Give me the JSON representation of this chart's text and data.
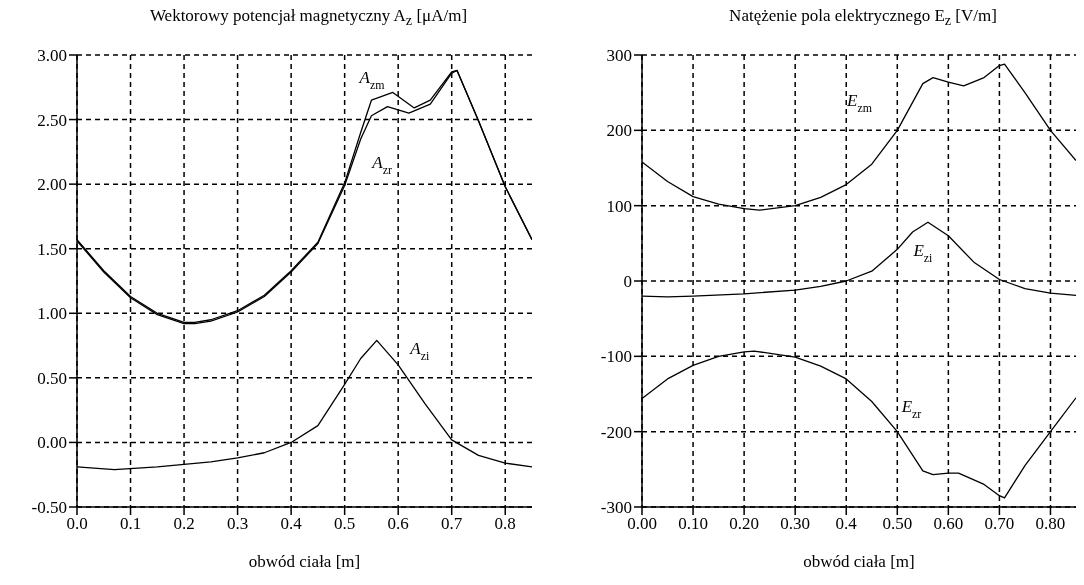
{
  "chart_data": [
    {
      "type": "line",
      "title": "Wektorowy potencjał magnetyczny A$_{z}$ [μA/m]",
      "xlabel": "obwód ciała [m]",
      "grid": true,
      "marker": "none",
      "line_style": "solid",
      "xlim": [
        0,
        0.85
      ],
      "ylim": [
        -0.5,
        3
      ],
      "xticks": [
        {
          "value": 0,
          "label": "0.0"
        },
        0.1,
        0.2,
        0.3,
        0.4,
        0.5,
        0.6,
        0.7,
        0.8
      ],
      "yticks": [
        {
          "value": -0.5,
          "label": "-0.50"
        },
        {
          "value": 0,
          "label": "0.00"
        },
        {
          "value": 0.5,
          "label": "0.50"
        },
        {
          "value": 1,
          "label": "1.00"
        },
        {
          "value": 1.5,
          "label": "1.50"
        },
        {
          "value": 2,
          "label": "2.00"
        },
        {
          "value": 2.5,
          "label": "2.50"
        },
        {
          "value": 3,
          "label": "3.00"
        }
      ],
      "series": [
        {
          "name": "A$_{zm}$",
          "color": "#000000",
          "x": [
            0,
            0.05,
            0.1,
            0.15,
            0.2,
            0.22,
            0.25,
            0.3,
            0.35,
            0.4,
            0.45,
            0.5,
            0.53,
            0.55,
            0.59,
            0.63,
            0.66,
            0.7,
            0.71,
            0.75,
            0.8,
            0.85
          ],
          "values": [
            1.57,
            1.33,
            1.13,
            1.0,
            0.93,
            0.93,
            0.95,
            1.02,
            1.14,
            1.33,
            1.55,
            2.01,
            2.4,
            2.65,
            2.71,
            2.59,
            2.65,
            2.87,
            2.88,
            2.49,
            1.98,
            1.57
          ]
        },
        {
          "name": "A$_{zr}$",
          "color": "#000000",
          "x": [
            0,
            0.05,
            0.1,
            0.15,
            0.2,
            0.22,
            0.25,
            0.3,
            0.35,
            0.4,
            0.45,
            0.5,
            0.53,
            0.55,
            0.58,
            0.62,
            0.66,
            0.7,
            0.71,
            0.75,
            0.8,
            0.85
          ],
          "values": [
            1.56,
            1.32,
            1.12,
            0.99,
            0.92,
            0.92,
            0.94,
            1.01,
            1.13,
            1.32,
            1.54,
            1.99,
            2.35,
            2.53,
            2.6,
            2.55,
            2.62,
            2.86,
            2.88,
            2.49,
            1.98,
            1.57
          ]
        },
        {
          "name": "A$_{zi}$",
          "color": "#000000",
          "x": [
            0,
            0.07,
            0.15,
            0.2,
            0.25,
            0.3,
            0.35,
            0.4,
            0.45,
            0.5,
            0.53,
            0.56,
            0.6,
            0.65,
            0.7,
            0.75,
            0.8,
            0.85
          ],
          "values": [
            -0.19,
            -0.21,
            -0.19,
            -0.17,
            -0.15,
            -0.12,
            -0.08,
            0.0,
            0.13,
            0.45,
            0.65,
            0.79,
            0.6,
            0.3,
            0.02,
            -0.1,
            -0.16,
            -0.19
          ]
        }
      ]
    },
    {
      "type": "line",
      "title": "Natężenie pola elektrycznego E$_{z}$ [V/m]",
      "xlabel": "obwód ciała [m]",
      "grid": true,
      "marker": "none",
      "line_style": "solid",
      "xlim": [
        0,
        0.85
      ],
      "ylim": [
        -300,
        300
      ],
      "xticks": [
        {
          "value": 0,
          "label": "0.00"
        },
        {
          "value": 0.1,
          "label": "0.10"
        },
        {
          "value": 0.2,
          "label": "0.20"
        },
        {
          "value": 0.3,
          "label": "0.30"
        },
        0.4,
        {
          "value": 0.5,
          "label": "0.50"
        },
        {
          "value": 0.6,
          "label": "0.60"
        },
        {
          "value": 0.7,
          "label": "0.70"
        },
        {
          "value": 0.8,
          "label": "0.80"
        }
      ],
      "yticks": [
        -300,
        -200,
        -100,
        0,
        100,
        200,
        300
      ],
      "series": [
        {
          "name": "E$_{zm}$",
          "color": "#000000",
          "x": [
            0,
            0.05,
            0.1,
            0.15,
            0.2,
            0.23,
            0.3,
            0.35,
            0.4,
            0.45,
            0.5,
            0.55,
            0.57,
            0.6,
            0.63,
            0.67,
            0.7,
            0.71,
            0.75,
            0.8,
            0.85
          ],
          "values": [
            158,
            132,
            112,
            102,
            96,
            94,
            100,
            111,
            128,
            155,
            200,
            262,
            270,
            264,
            259,
            270,
            286,
            288,
            250,
            200,
            160
          ]
        },
        {
          "name": "E$_{zi}$",
          "color": "#000000",
          "x": [
            0,
            0.05,
            0.1,
            0.2,
            0.3,
            0.35,
            0.4,
            0.45,
            0.5,
            0.53,
            0.56,
            0.6,
            0.65,
            0.7,
            0.75,
            0.8,
            0.85
          ],
          "values": [
            -20,
            -21,
            -20,
            -17,
            -12,
            -7,
            0,
            13,
            42,
            65,
            78,
            60,
            25,
            2,
            -10,
            -16,
            -19
          ]
        },
        {
          "name": "E$_{zr}$",
          "color": "#000000",
          "x": [
            0,
            0.05,
            0.1,
            0.15,
            0.2,
            0.22,
            0.3,
            0.35,
            0.4,
            0.45,
            0.5,
            0.55,
            0.57,
            0.6,
            0.62,
            0.67,
            0.7,
            0.71,
            0.75,
            0.8,
            0.85
          ],
          "values": [
            -156,
            -130,
            -112,
            -100,
            -94,
            -93,
            -101,
            -113,
            -130,
            -160,
            -200,
            -252,
            -257,
            -255,
            -255,
            -270,
            -285,
            -288,
            -245,
            -200,
            -155
          ]
        }
      ]
    }
  ]
}
